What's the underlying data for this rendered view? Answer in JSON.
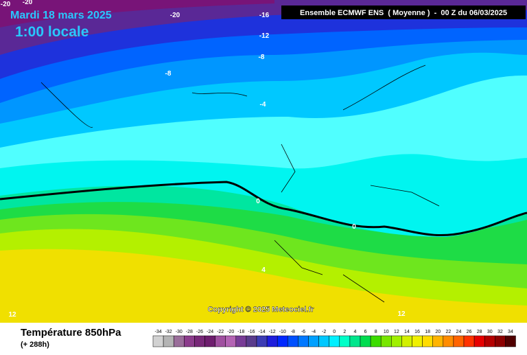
{
  "header": {
    "date": "Mardi 18 mars 2025",
    "time": "1:00 locale",
    "model": "Ensemble ECMWF ENS  ( Moyenne )  -  00 Z du 06/03/2025"
  },
  "copyright": "Copyright © 2025 Meteociel.fr",
  "contour_labels": [
    -20,
    -20,
    -20,
    -16,
    -12,
    -8,
    -8,
    -4,
    0,
    0,
    4,
    12,
    12
  ],
  "footer": {
    "title": "Température 850hPa",
    "lead": "(+ 288h)"
  },
  "legend": {
    "values": [
      -34,
      -32,
      -30,
      -28,
      -26,
      -24,
      -22,
      -20,
      -18,
      -16,
      -14,
      -12,
      -10,
      -8,
      -6,
      -4,
      -2,
      0,
      2,
      4,
      6,
      8,
      10,
      12,
      14,
      16,
      18,
      20,
      22,
      24,
      26,
      28,
      30,
      32,
      34
    ],
    "colors": [
      "#d2d2d2",
      "#b4b4b4",
      "#9a6e9a",
      "#8c3c8c",
      "#782878",
      "#6e1e6e",
      "#a050a0",
      "#b464b4",
      "#783c96",
      "#5a3c8c",
      "#3c3cb4",
      "#1e1edc",
      "#0028ff",
      "#0050ff",
      "#0078ff",
      "#00a0ff",
      "#00c8ff",
      "#00f0ff",
      "#00ffc8",
      "#00e68c",
      "#00dc50",
      "#3cdc00",
      "#78e600",
      "#a0f000",
      "#d2f000",
      "#f0f000",
      "#ffdc00",
      "#ffb400",
      "#ff8c00",
      "#ff6400",
      "#ff3200",
      "#e60000",
      "#b40000",
      "#8c0000",
      "#500000"
    ]
  }
}
